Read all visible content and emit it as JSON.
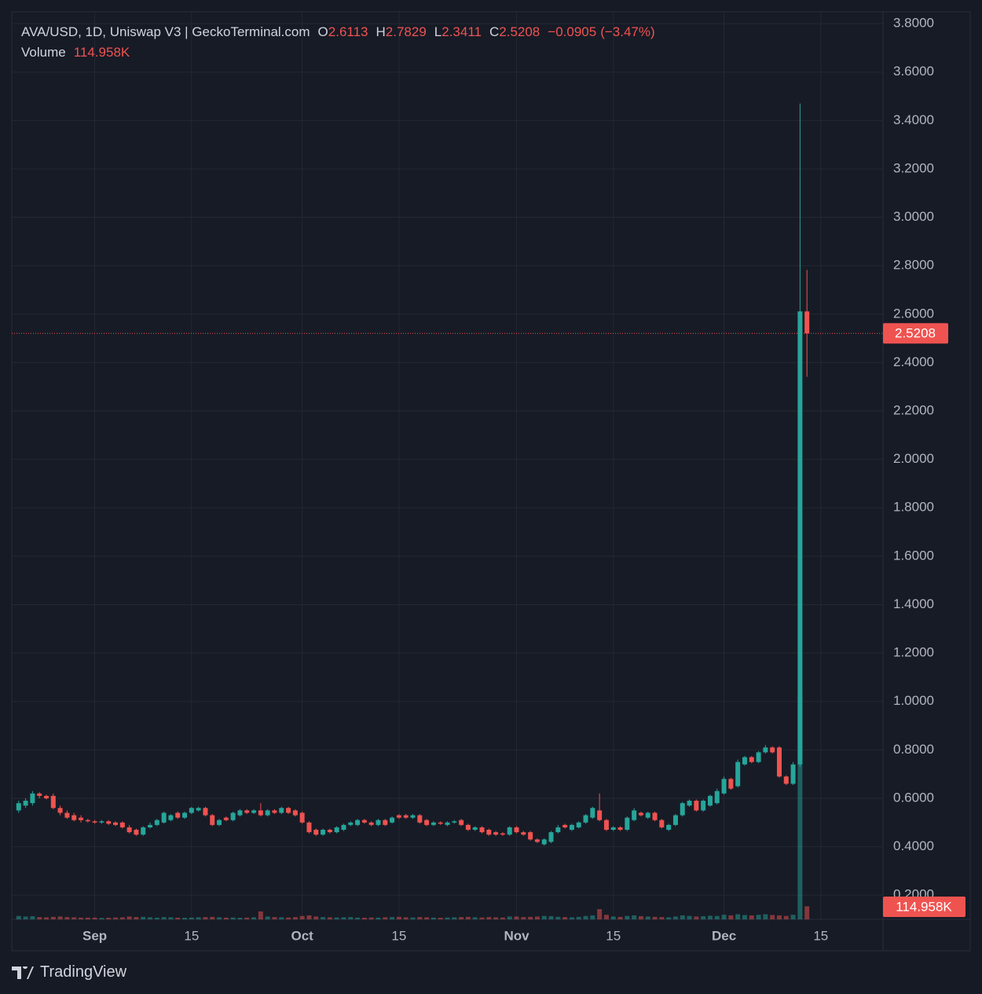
{
  "chart_data": {
    "type": "candlestick",
    "title": "AVA/USD, 1D, Uniswap V3 | GeckoTerminal.com",
    "ohlc_prefixes": [
      "O",
      "H",
      "L",
      "C"
    ],
    "change": {
      "value": -0.0905,
      "label": "−0.0905"
    },
    "change_pct": {
      "value": -3.47,
      "label": "(−3.47%)"
    },
    "up_color": "#26a69a",
    "down_color": "#ef5350",
    "x": [
      "Aug 21",
      "Aug 22",
      "Aug 23",
      "Aug 24",
      "Aug 25",
      "Aug 26",
      "Aug 27",
      "Aug 28",
      "Aug 29",
      "Aug 30",
      "Aug 31",
      "Sep 1",
      "Sep 2",
      "Sep 3",
      "Sep 4",
      "Sep 5",
      "Sep 6",
      "Sep 7",
      "Sep 8",
      "Sep 9",
      "Sep 10",
      "Sep 11",
      "Sep 12",
      "Sep 13",
      "Sep 14",
      "Sep 15",
      "Sep 16",
      "Sep 17",
      "Sep 18",
      "Sep 19",
      "Sep 20",
      "Sep 21",
      "Sep 22",
      "Sep 23",
      "Sep 24",
      "Sep 25",
      "Sep 26",
      "Sep 27",
      "Sep 28",
      "Sep 29",
      "Sep 30",
      "Oct 1",
      "Oct 2",
      "Oct 3",
      "Oct 4",
      "Oct 5",
      "Oct 6",
      "Oct 7",
      "Oct 8",
      "Oct 9",
      "Oct 10",
      "Oct 11",
      "Oct 12",
      "Oct 13",
      "Oct 14",
      "Oct 15",
      "Oct 16",
      "Oct 17",
      "Oct 18",
      "Oct 19",
      "Oct 20",
      "Oct 21",
      "Oct 22",
      "Oct 23",
      "Oct 24",
      "Oct 25",
      "Oct 26",
      "Oct 27",
      "Oct 28",
      "Oct 29",
      "Oct 30",
      "Oct 31",
      "Nov 1",
      "Nov 2",
      "Nov 3",
      "Nov 4",
      "Nov 5",
      "Nov 6",
      "Nov 7",
      "Nov 8",
      "Nov 9",
      "Nov 10",
      "Nov 11",
      "Nov 12",
      "Nov 13",
      "Nov 14",
      "Nov 15",
      "Nov 16",
      "Nov 17",
      "Nov 18",
      "Nov 19",
      "Nov 20",
      "Nov 21",
      "Nov 22",
      "Nov 23",
      "Nov 24",
      "Nov 25",
      "Nov 26",
      "Nov 27",
      "Nov 28",
      "Nov 29",
      "Nov 30",
      "Dec 1",
      "Dec 2",
      "Dec 3",
      "Dec 4",
      "Dec 5",
      "Dec 6",
      "Dec 7",
      "Dec 8",
      "Dec 9",
      "Dec 10",
      "Dec 11",
      "Dec 12",
      "Dec 13"
    ],
    "open": [
      0.55,
      0.57,
      0.58,
      0.62,
      0.61,
      0.61,
      0.56,
      0.54,
      0.53,
      0.52,
      0.51,
      0.505,
      0.5,
      0.505,
      0.5,
      0.5,
      0.48,
      0.47,
      0.45,
      0.48,
      0.49,
      0.5,
      0.51,
      0.54,
      0.52,
      0.54,
      0.55,
      0.56,
      0.53,
      0.49,
      0.52,
      0.51,
      0.53,
      0.55,
      0.54,
      0.55,
      0.53,
      0.55,
      0.54,
      0.56,
      0.55,
      0.54,
      0.5,
      0.47,
      0.45,
      0.47,
      0.46,
      0.47,
      0.49,
      0.49,
      0.51,
      0.5,
      0.49,
      0.51,
      0.5,
      0.53,
      0.53,
      0.52,
      0.53,
      0.51,
      0.49,
      0.5,
      0.49,
      0.5,
      0.51,
      0.49,
      0.47,
      0.48,
      0.47,
      0.46,
      0.455,
      0.45,
      0.48,
      0.46,
      0.46,
      0.43,
      0.41,
      0.42,
      0.46,
      0.49,
      0.47,
      0.48,
      0.5,
      0.52,
      0.55,
      0.51,
      0.47,
      0.48,
      0.47,
      0.51,
      0.54,
      0.52,
      0.54,
      0.51,
      0.47,
      0.49,
      0.53,
      0.57,
      0.59,
      0.55,
      0.57,
      0.58,
      0.62,
      0.68,
      0.65,
      0.74,
      0.77,
      0.75,
      0.79,
      0.81,
      0.81,
      0.69,
      0.66,
      0.74,
      2.6113
    ],
    "high": [
      0.59,
      0.6,
      0.63,
      0.625,
      0.615,
      0.62,
      0.57,
      0.55,
      0.54,
      0.53,
      0.515,
      0.51,
      0.51,
      0.51,
      0.505,
      0.505,
      0.49,
      0.475,
      0.485,
      0.5,
      0.515,
      0.545,
      0.535,
      0.545,
      0.545,
      0.565,
      0.565,
      0.565,
      0.535,
      0.515,
      0.525,
      0.545,
      0.555,
      0.555,
      0.555,
      0.58,
      0.555,
      0.555,
      0.565,
      0.565,
      0.555,
      0.545,
      0.505,
      0.475,
      0.475,
      0.475,
      0.485,
      0.495,
      0.505,
      0.515,
      0.515,
      0.505,
      0.515,
      0.515,
      0.525,
      0.535,
      0.535,
      0.535,
      0.535,
      0.515,
      0.505,
      0.505,
      0.505,
      0.51,
      0.515,
      0.495,
      0.485,
      0.485,
      0.475,
      0.465,
      0.46,
      0.485,
      0.485,
      0.465,
      0.465,
      0.435,
      0.435,
      0.465,
      0.49,
      0.495,
      0.495,
      0.505,
      0.535,
      0.565,
      0.62,
      0.515,
      0.485,
      0.485,
      0.525,
      0.56,
      0.545,
      0.545,
      0.545,
      0.515,
      0.495,
      0.535,
      0.585,
      0.595,
      0.595,
      0.595,
      0.615,
      0.64,
      0.69,
      0.685,
      0.76,
      0.775,
      0.775,
      0.795,
      0.82,
      0.815,
      0.815,
      0.695,
      0.75,
      3.47,
      2.7829
    ],
    "low": [
      0.54,
      0.56,
      0.57,
      0.6,
      0.595,
      0.555,
      0.53,
      0.515,
      0.505,
      0.5,
      0.5,
      0.495,
      0.495,
      0.49,
      0.485,
      0.475,
      0.455,
      0.445,
      0.445,
      0.475,
      0.485,
      0.495,
      0.505,
      0.515,
      0.515,
      0.535,
      0.545,
      0.525,
      0.485,
      0.485,
      0.505,
      0.505,
      0.525,
      0.535,
      0.535,
      0.525,
      0.525,
      0.535,
      0.535,
      0.535,
      0.525,
      0.495,
      0.455,
      0.445,
      0.445,
      0.455,
      0.455,
      0.465,
      0.485,
      0.485,
      0.495,
      0.485,
      0.485,
      0.485,
      0.495,
      0.515,
      0.515,
      0.515,
      0.495,
      0.485,
      0.485,
      0.49,
      0.485,
      0.495,
      0.485,
      0.465,
      0.465,
      0.455,
      0.445,
      0.445,
      0.445,
      0.445,
      0.455,
      0.445,
      0.425,
      0.415,
      0.405,
      0.415,
      0.455,
      0.475,
      0.465,
      0.475,
      0.495,
      0.515,
      0.505,
      0.465,
      0.465,
      0.465,
      0.465,
      0.505,
      0.525,
      0.515,
      0.505,
      0.475,
      0.465,
      0.485,
      0.525,
      0.565,
      0.545,
      0.545,
      0.565,
      0.575,
      0.615,
      0.635,
      0.645,
      0.735,
      0.745,
      0.745,
      0.785,
      0.785,
      0.685,
      0.655,
      0.655,
      0.73,
      2.3411
    ],
    "close": [
      0.58,
      0.59,
      0.62,
      0.61,
      0.6,
      0.56,
      0.54,
      0.52,
      0.51,
      0.51,
      0.505,
      0.5,
      0.505,
      0.495,
      0.49,
      0.48,
      0.46,
      0.45,
      0.48,
      0.49,
      0.51,
      0.54,
      0.53,
      0.52,
      0.54,
      0.56,
      0.56,
      0.53,
      0.49,
      0.51,
      0.51,
      0.54,
      0.55,
      0.54,
      0.55,
      0.53,
      0.55,
      0.54,
      0.56,
      0.54,
      0.53,
      0.5,
      0.46,
      0.45,
      0.47,
      0.46,
      0.48,
      0.49,
      0.5,
      0.51,
      0.5,
      0.49,
      0.51,
      0.49,
      0.52,
      0.52,
      0.52,
      0.53,
      0.5,
      0.49,
      0.5,
      0.495,
      0.5,
      0.505,
      0.49,
      0.47,
      0.48,
      0.46,
      0.45,
      0.45,
      0.45,
      0.48,
      0.46,
      0.45,
      0.43,
      0.42,
      0.43,
      0.46,
      0.48,
      0.48,
      0.49,
      0.5,
      0.53,
      0.56,
      0.51,
      0.47,
      0.48,
      0.47,
      0.52,
      0.55,
      0.53,
      0.54,
      0.51,
      0.48,
      0.49,
      0.53,
      0.58,
      0.59,
      0.55,
      0.59,
      0.61,
      0.63,
      0.68,
      0.64,
      0.75,
      0.77,
      0.75,
      0.79,
      0.81,
      0.79,
      0.69,
      0.66,
      0.74,
      2.6113,
      2.5208
    ],
    "volume": {
      "name": "Volume",
      "up_color": "rgba(38,166,154,0.5)",
      "down_color": "rgba(239,83,80,0.5)",
      "vlim": [
        0,
        8000000
      ],
      "values": [
        30000,
        25000,
        28000,
        20000,
        18000,
        22000,
        25000,
        20000,
        18000,
        15000,
        15000,
        15000,
        12000,
        14000,
        16000,
        18000,
        25000,
        20000,
        22000,
        18000,
        15000,
        20000,
        18000,
        15000,
        14000,
        16000,
        18000,
        20000,
        22000,
        18000,
        15000,
        16000,
        14000,
        15000,
        18000,
        70000,
        25000,
        20000,
        18000,
        16000,
        20000,
        30000,
        35000,
        25000,
        20000,
        18000,
        16000,
        18000,
        20000,
        15000,
        14000,
        16000,
        15000,
        18000,
        20000,
        22000,
        18000,
        16000,
        20000,
        18000,
        15000,
        14000,
        16000,
        18000,
        20000,
        22000,
        18000,
        16000,
        20000,
        18000,
        16000,
        25000,
        25000,
        20000,
        22000,
        25000,
        30000,
        28000,
        22000,
        20000,
        18000,
        22000,
        30000,
        35000,
        90000,
        40000,
        25000,
        22000,
        30000,
        35000,
        28000,
        25000,
        22000,
        20000,
        18000,
        25000,
        35000,
        30000,
        25000,
        28000,
        32000,
        30000,
        40000,
        35000,
        45000,
        38000,
        35000,
        40000,
        45000,
        38000,
        35000,
        30000,
        40000,
        2000000,
        114958
      ],
      "value_labels": [
        null,
        null,
        null,
        null,
        null,
        null,
        null,
        null,
        null,
        null,
        null,
        null,
        null,
        null,
        null,
        null,
        null,
        null,
        null,
        null,
        null,
        null,
        null,
        null,
        null,
        null,
        null,
        null,
        null,
        null,
        null,
        null,
        null,
        null,
        null,
        null,
        null,
        null,
        null,
        null,
        null,
        null,
        null,
        null,
        null,
        null,
        null,
        null,
        null,
        null,
        null,
        null,
        null,
        null,
        null,
        null,
        null,
        null,
        null,
        null,
        null,
        null,
        null,
        null,
        null,
        null,
        null,
        null,
        null,
        null,
        null,
        null,
        null,
        null,
        null,
        null,
        null,
        null,
        null,
        null,
        null,
        null,
        null,
        null,
        null,
        null,
        null,
        null,
        null,
        null,
        null,
        null,
        null,
        null,
        null,
        null,
        null,
        null,
        null,
        null,
        null,
        null,
        null,
        null,
        null,
        null,
        null,
        null,
        null,
        null,
        null,
        null,
        null,
        null,
        "114.958K"
      ]
    },
    "ylim": [
      0.1,
      3.849
    ],
    "yticks": [
      {
        "value": 0.2,
        "label": "0.2000"
      },
      {
        "value": 0.4,
        "label": "0.4000"
      },
      {
        "value": 0.6,
        "label": "0.6000"
      },
      {
        "value": 0.8,
        "label": "0.8000"
      },
      {
        "value": 1.0,
        "label": "1.0000"
      },
      {
        "value": 1.2,
        "label": "1.2000"
      },
      {
        "value": 1.4,
        "label": "1.4000"
      },
      {
        "value": 1.6,
        "label": "1.6000"
      },
      {
        "value": 1.8,
        "label": "1.8000"
      },
      {
        "value": 2.0,
        "label": "2.0000"
      },
      {
        "value": 2.2,
        "label": "2.2000"
      },
      {
        "value": 2.4,
        "label": "2.4000"
      },
      {
        "value": 2.6,
        "label": "2.6000"
      },
      {
        "value": 2.8,
        "label": "2.8000"
      },
      {
        "value": 3.0,
        "label": "3.0000"
      },
      {
        "value": 3.2,
        "label": "3.2000"
      },
      {
        "value": 3.4,
        "label": "3.4000"
      },
      {
        "value": 3.6,
        "label": "3.6000"
      },
      {
        "value": 3.8,
        "label": "3.8000"
      }
    ],
    "xlim": [
      "Aug 20",
      "Dec 24"
    ],
    "xticks": [
      {
        "value": "Sep 1",
        "label": "Sep"
      },
      {
        "value": "Sep 15",
        "label": "15"
      },
      {
        "value": "Oct 1",
        "label": "Oct"
      },
      {
        "value": "Oct 15",
        "label": "15"
      },
      {
        "value": "Nov 1",
        "label": "Nov"
      },
      {
        "value": "Nov 15",
        "label": "15"
      },
      {
        "value": "Dec 1",
        "label": "Dec"
      },
      {
        "value": "Dec 15",
        "label": "15"
      }
    ],
    "grid": true,
    "watermark": "TradingView"
  }
}
